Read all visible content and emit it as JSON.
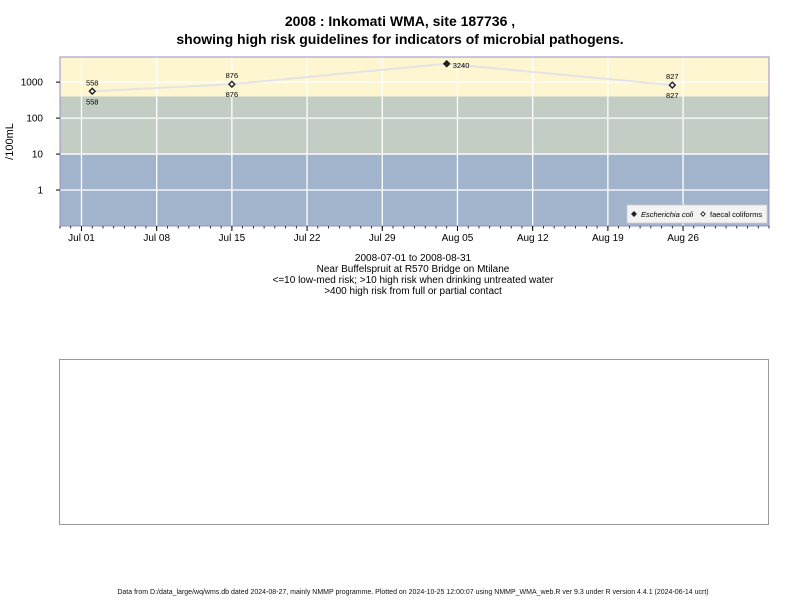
{
  "title_line1": "2008 : Inkomati WMA, site 187736 ,",
  "title_line2": "showing high risk guidelines for indicators of microbial pathogens.",
  "subtitle": {
    "line1": "2008-07-01 to 2008-08-31",
    "line2": "Near Buffelspruit at R570 Bridge on Mtilane",
    "line3": "<=10 low-med risk; >10 high risk when drinking untreated water",
    "line4": ">400 high risk from full or partial contact"
  },
  "footer": "Data from D:/data_large/wq/wms.db dated 2024-08-27, mainly NMMP programme. Plotted on 2024-10-25 12:00:07 using NMMP_WMA_web.R ver 9.3 under R version 4.4.1 (2024-06-14 ucrt)",
  "colors": {
    "band_low": "#a2b4cb",
    "band_mid": "#c3cdc4",
    "band_high": "#fdf6d0",
    "line": "#e4e4e4",
    "border": "#9b8fc7"
  },
  "chart_data": {
    "type": "line",
    "ylabel": "/100mL",
    "yscale": "log",
    "ylim": [
      0.1,
      5000
    ],
    "yticks": [
      1,
      10,
      100,
      1000
    ],
    "ytick_labels": [
      "1",
      "10",
      "100",
      "1000"
    ],
    "xlim": [
      "2008-06-29",
      "2008-09-03"
    ],
    "xticks": [
      "2008-07-01",
      "2008-07-08",
      "2008-07-15",
      "2008-07-22",
      "2008-07-29",
      "2008-08-05",
      "2008-08-12",
      "2008-08-19",
      "2008-08-26"
    ],
    "xtick_labels": [
      "Jul 01",
      "Jul 08",
      "Jul 15",
      "Jul 22",
      "Jul 29",
      "Aug 05",
      "Aug 12",
      "Aug 19",
      "Aug 26"
    ],
    "bands": [
      {
        "from": 0.1,
        "to": 10,
        "color": "#a2b4cb"
      },
      {
        "from": 10,
        "to": 400,
        "color": "#c3cdc4"
      },
      {
        "from": 400,
        "to": 5000,
        "color": "#fdf6d0"
      }
    ],
    "grid": true,
    "legend_position": "bottom-right",
    "series": [
      {
        "name": "Escherichia coli",
        "marker": "filled-diamond",
        "x": [
          "2008-07-02",
          "2008-07-15",
          "2008-08-04",
          "2008-08-25"
        ],
        "values": [
          558,
          876,
          3240,
          827
        ],
        "labels": [
          "558",
          "876",
          "3240",
          "827"
        ]
      },
      {
        "name": "faecal coliforms",
        "marker": "open-diamond",
        "x": [
          "2008-07-02",
          "2008-07-15",
          "2008-08-25"
        ],
        "values": [
          558,
          876,
          827
        ],
        "labels": [
          "558",
          "876",
          "827"
        ]
      }
    ]
  }
}
